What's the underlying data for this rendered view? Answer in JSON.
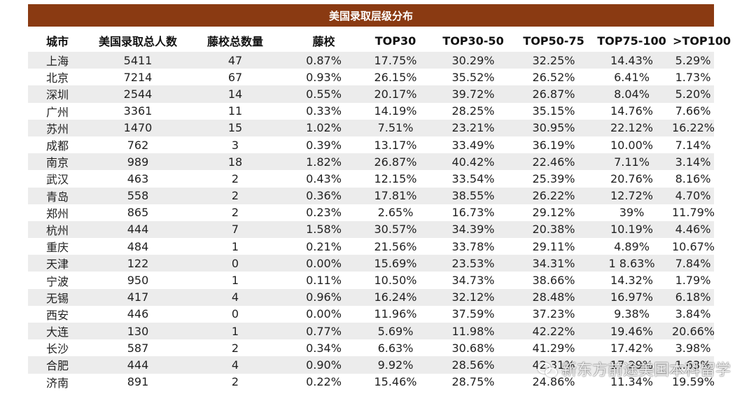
{
  "accent_color": "#8a3a12",
  "title": "美国录取层级分布",
  "headers": [
    "城市",
    "美国录取总人数",
    "藤校总数量",
    "藤校",
    "TOP30",
    "TOP30-50",
    "TOP50-75",
    "TOP75-100",
    ">TOP100"
  ],
  "rows": [
    [
      "上海",
      "5411",
      "47",
      "0.87%",
      "17.75%",
      "30.29%",
      "32.25%",
      "14.43%",
      "5.29%"
    ],
    [
      "北京",
      "7214",
      "67",
      "0.93%",
      "26.15%",
      "35.52%",
      "26.52%",
      "6.41%",
      "1.73%"
    ],
    [
      "深圳",
      "2544",
      "14",
      "0.55%",
      "20.17%",
      "39.72%",
      "26.87%",
      "8.04%",
      "5.20%"
    ],
    [
      "广州",
      "3361",
      "11",
      "0.33%",
      "14.19%",
      "28.25%",
      "35.15%",
      "14.76%",
      "7.66%"
    ],
    [
      "苏州",
      "1470",
      "15",
      "1.02%",
      "7.51%",
      "23.21%",
      "30.95%",
      "22.12%",
      "16.22%"
    ],
    [
      "成都",
      "762",
      "3",
      "0.39%",
      "13.17%",
      "33.49%",
      "36.19%",
      "10.00%",
      "7.14%"
    ],
    [
      "南京",
      "989",
      "18",
      "1.82%",
      "26.87%",
      "40.42%",
      "22.46%",
      "7.11%",
      "3.14%"
    ],
    [
      "武汉",
      "463",
      "2",
      "0.43%",
      "12.15%",
      "33.54%",
      "25.39%",
      "20.76%",
      "8.16%"
    ],
    [
      "青岛",
      "558",
      "2",
      "0.36%",
      "17.81%",
      "38.55%",
      "26.22%",
      "12.72%",
      "4.70%"
    ],
    [
      "郑州",
      "865",
      "2",
      "0.23%",
      "2.65%",
      "16.73%",
      "29.12%",
      "39%",
      "11.79%"
    ],
    [
      "杭州",
      "444",
      "7",
      "1.58%",
      "30.57%",
      "34.39%",
      "20.38%",
      "10.19%",
      "4.46%"
    ],
    [
      "重庆",
      "484",
      "1",
      "0.21%",
      "21.56%",
      "33.78%",
      "29.11%",
      "4.89%",
      "10.67%"
    ],
    [
      "天津",
      "122",
      "0",
      "0.00%",
      "15.69%",
      "23.53%",
      "34.31%",
      "1 8.63%",
      "7.84%"
    ],
    [
      "宁波",
      "950",
      "1",
      "0.11%",
      "10.50%",
      "34.73%",
      "38.66%",
      "14.32%",
      "1.79%"
    ],
    [
      "无锡",
      "417",
      "4",
      "0.96%",
      "16.24%",
      "32.12%",
      "28.48%",
      "16.97%",
      "6.18%"
    ],
    [
      "西安",
      "446",
      "0",
      "0.00%",
      "11.96%",
      "37.59%",
      "37.23%",
      "9.38%",
      "3.84%"
    ],
    [
      "大连",
      "130",
      "1",
      "0.77%",
      "5.69%",
      "11.98%",
      "42.22%",
      "19.46%",
      "20.66%"
    ],
    [
      "长沙",
      "587",
      "2",
      "0.34%",
      "6.63%",
      "30.68%",
      "41.29%",
      "17.42%",
      "3.98%"
    ],
    [
      "合肥",
      "444",
      "4",
      "0.90%",
      "9.92%",
      "28.56%",
      "42.31%",
      "17.29%",
      "1.63%"
    ],
    [
      "济南",
      "891",
      "2",
      "0.22%",
      "15.46%",
      "28.75%",
      "24.86%",
      "11.34%",
      "19.59%"
    ]
  ],
  "watermark": {
    "icon": "wechat-icon",
    "text": "新东方前途美国本科留学"
  }
}
